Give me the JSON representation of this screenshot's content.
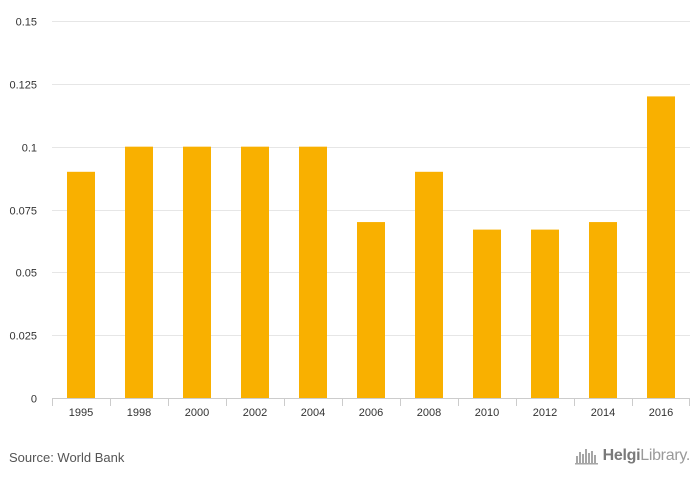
{
  "chart_data": {
    "type": "bar",
    "categories": [
      "1995",
      "1998",
      "2000",
      "2002",
      "2004",
      "2006",
      "2008",
      "2010",
      "2012",
      "2014",
      "2016"
    ],
    "values": [
      0.09,
      0.1,
      0.1,
      0.1,
      0.1,
      0.07,
      0.09,
      0.067,
      0.067,
      0.07,
      0.12
    ],
    "ylim": [
      0,
      0.15
    ],
    "yticks": [
      0,
      0.025,
      0.05,
      0.075,
      0.1,
      0.125,
      0.15
    ],
    "ytick_labels": [
      "0",
      "0.025",
      "0.05",
      "0.075",
      "0.1",
      "0.125",
      "0.15"
    ],
    "bar_color": "#f9b000",
    "grid": true
  },
  "footer": {
    "source": "Source: World Bank",
    "logo_brand": "Helgi",
    "logo_suffix": "Library."
  }
}
